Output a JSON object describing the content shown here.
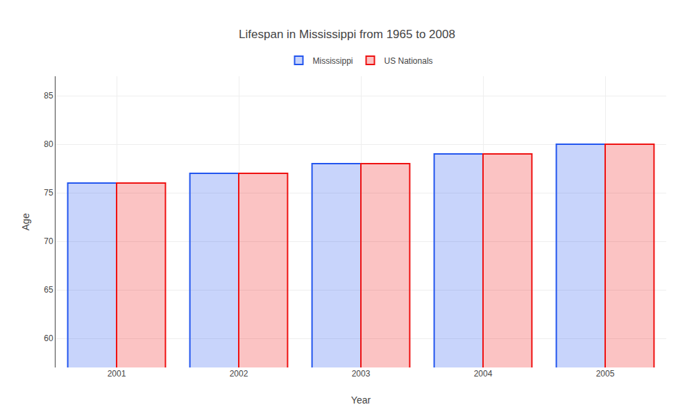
{
  "chart_data": {
    "type": "bar",
    "title": "Lifespan in Mississippi from 1965 to 2008",
    "xlabel": "Year",
    "ylabel": "Age",
    "categories": [
      "2001",
      "2002",
      "2003",
      "2004",
      "2005"
    ],
    "series": [
      {
        "name": "Mississippi",
        "color": "#2255ee",
        "values": [
          76,
          77,
          78,
          79,
          80
        ]
      },
      {
        "name": "US Nationals",
        "color": "#ee1111",
        "values": [
          76,
          77,
          78,
          79,
          80
        ]
      }
    ],
    "ylim": [
      57,
      87
    ],
    "yticks": [
      60,
      65,
      70,
      75,
      80,
      85
    ],
    "grid": true,
    "legend": "top"
  }
}
